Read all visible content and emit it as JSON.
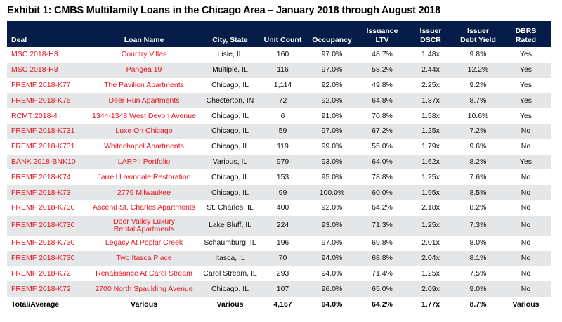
{
  "title": "Exhibit 1: CMBS Multifamily Loans in the Chicago Area – January 2018 through August 2018",
  "colors": {
    "header_bg": "#071d49",
    "link_red": "#e8141f",
    "stripe": "#e5e6e8"
  },
  "columns": [
    "Deal",
    "Loan Name",
    "City, State",
    "Unit Count",
    "Occupancy",
    "Issuance LTV",
    "Issuer DSCR",
    "Issuer Debt Yield",
    "DBRS Rated"
  ],
  "column_lines": [
    [
      "Deal"
    ],
    [
      "Loan Name"
    ],
    [
      "City, State"
    ],
    [
      "Unit Count"
    ],
    [
      "Occupancy"
    ],
    [
      "Issuance",
      "LTV"
    ],
    [
      "Issuer",
      "DSCR"
    ],
    [
      "Issuer",
      "Debt Yield"
    ],
    [
      "DBRS",
      "Rated"
    ]
  ],
  "rows": [
    [
      "MSC 2018-H3",
      "Country Villas",
      "Lisle, IL",
      "160",
      "97.0%",
      "48.7%",
      "1.48x",
      "9.8%",
      "Yes"
    ],
    [
      "MSC 2018-H3",
      "Pangea 19",
      "Multiple, IL",
      "116",
      "97.0%",
      "58.2%",
      "2.44x",
      "12.2%",
      "Yes"
    ],
    [
      "FREMF 2018-K77",
      "The Pavilion Apartments",
      "Chicago, IL",
      "1,114",
      "92.0%",
      "49.8%",
      "2.25x",
      "9.2%",
      "Yes"
    ],
    [
      "FREMF 2018-K75",
      "Deer Run Apartments",
      "Chesterton, IN",
      "72",
      "92.0%",
      "64.8%",
      "1.87x",
      "8.7%",
      "Yes"
    ],
    [
      "RCMT 2018-4",
      "1344-1348 West Devon Avenue",
      "Chicago, IL",
      "6",
      "91.0%",
      "70.8%",
      "1.58x",
      "10.6%",
      "Yes"
    ],
    [
      "FREMF 2018-K731",
      "Luxe On Chicago",
      "Chicago, IL",
      "59",
      "97.0%",
      "67.2%",
      "1.25x",
      "7.2%",
      "No"
    ],
    [
      "FREMF 2018-K731",
      "Whitechapel Apartments",
      "Chicago, IL",
      "119",
      "99.0%",
      "55.0%",
      "1.79x",
      "9.6%",
      "No"
    ],
    [
      "BANK 2018-BNK10",
      "LARP I Portfolio",
      "Various, IL",
      "979",
      "93.0%",
      "64.0%",
      "1.62x",
      "8.2%",
      "Yes"
    ],
    [
      "FREMF 2018-K74",
      "Jarrell Lawndale Restoration",
      "Chicago, IL",
      "153",
      "95.0%",
      "78.8%",
      "1.25x",
      "7.6%",
      "No"
    ],
    [
      "FREMF 2018-K73",
      "2779 Milwaukee",
      "Chicago, IL",
      "99",
      "100.0%",
      "60.0%",
      "1.95x",
      "8.5%",
      "No"
    ],
    [
      "FREMF 2018-K730",
      "Ascend St. Charles Apartments",
      "St. Charles, IL",
      "400",
      "92.0%",
      "64.2%",
      "2.18x",
      "8.2%",
      "No"
    ],
    [
      "FREMF 2018-K730",
      "Deer Valley Luxury Rental Apartments",
      "Lake Bluff, IL",
      "224",
      "93.0%",
      "71.3%",
      "1.25x",
      "7.3%",
      "No"
    ],
    [
      "FREMF 2018-K730",
      "Legacy At Poplar Creek",
      "Schaumburg, IL",
      "196",
      "97.0%",
      "69.8%",
      "2.01x",
      "8.0%",
      "No"
    ],
    [
      "FREMF 2018-K730",
      "Two Itasca Place",
      "Itasca, IL",
      "70",
      "94.0%",
      "68.8%",
      "2.04x",
      "8.1%",
      "No"
    ],
    [
      "FREMF 2018-K72",
      "Renaissance At Carol Stream",
      "Carol Stream, IL",
      "293",
      "94.0%",
      "71.4%",
      "1.25x",
      "7.5%",
      "No"
    ],
    [
      "FREMF 2018-K72",
      "2700 North Spaulding Avenue",
      "Chicago, IL",
      "107",
      "96.0%",
      "65.0%",
      "2.09x",
      "9.0%",
      "No"
    ]
  ],
  "total": [
    "Total/Average",
    "Various",
    "Various",
    "4,167",
    "94.0%",
    "64.2%",
    "1.77x",
    "8.7%",
    "Various"
  ]
}
